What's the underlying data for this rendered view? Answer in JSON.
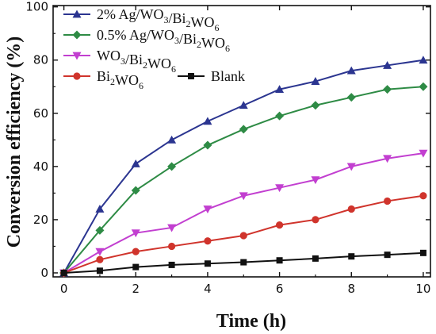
{
  "chart_data": {
    "type": "line",
    "xlabel": "Time (h)",
    "ylabel": "Conversion efficiency (%)",
    "xlim": [
      -0.3,
      10.2
    ],
    "ylim": [
      -1.5,
      100.5
    ],
    "x_ticks": [
      0,
      2,
      4,
      6,
      8,
      10
    ],
    "y_ticks": [
      0,
      20,
      40,
      60,
      80,
      100
    ],
    "legend_position": "top-left",
    "grid": false,
    "series": [
      {
        "name": "2% Ag/WO3/Bi2WO6",
        "legend_parts": [
          [
            "2% Ag/WO",
            ""
          ],
          [
            "3",
            "sub"
          ],
          [
            "/Bi",
            ""
          ],
          [
            "2",
            "sub"
          ],
          [
            "WO",
            ""
          ],
          [
            "6",
            "sub"
          ]
        ],
        "color": "#2b3590",
        "marker": "triangle-up",
        "x": [
          0,
          1,
          2,
          3,
          4,
          5,
          6,
          7,
          8,
          9,
          10
        ],
        "y": [
          0,
          24,
          41,
          50,
          57,
          63,
          69,
          72,
          76,
          78,
          80
        ]
      },
      {
        "name": "0.5% Ag/WO3/Bi2WO6",
        "legend_parts": [
          [
            "0.5% Ag/WO",
            ""
          ],
          [
            "3",
            "sub"
          ],
          [
            "/Bi",
            ""
          ],
          [
            "2",
            "sub"
          ],
          [
            "WO",
            ""
          ],
          [
            "6",
            "sub"
          ]
        ],
        "color": "#2e8b45",
        "marker": "diamond",
        "x": [
          0,
          1,
          2,
          3,
          4,
          5,
          6,
          7,
          8,
          9,
          10
        ],
        "y": [
          0,
          16,
          31,
          40,
          48,
          54,
          59,
          63,
          66,
          69,
          70
        ]
      },
      {
        "name": "WO3/Bi2WO6",
        "legend_parts": [
          [
            "WO",
            ""
          ],
          [
            "3",
            "sub"
          ],
          [
            "/Bi",
            ""
          ],
          [
            "2",
            "sub"
          ],
          [
            "WO",
            ""
          ],
          [
            "6",
            "sub"
          ]
        ],
        "color": "#c23fd0",
        "marker": "triangle-down",
        "x": [
          0,
          1,
          2,
          3,
          4,
          5,
          6,
          7,
          8,
          9,
          10
        ],
        "y": [
          0,
          8,
          15,
          17,
          24,
          29,
          32,
          35,
          40,
          43,
          45
        ]
      },
      {
        "name": "Bi2WO6",
        "legend_parts": [
          [
            "Bi",
            ""
          ],
          [
            "2",
            "sub"
          ],
          [
            "WO",
            ""
          ],
          [
            "6",
            "sub"
          ]
        ],
        "color": "#d0342c",
        "marker": "circle",
        "x": [
          0,
          1,
          2,
          3,
          4,
          5,
          6,
          7,
          8,
          9,
          10
        ],
        "y": [
          0,
          5,
          8,
          10,
          12,
          14,
          18,
          20,
          24,
          27,
          29
        ]
      },
      {
        "name": "Blank",
        "legend_parts": [
          [
            "Blank",
            ""
          ]
        ],
        "color": "#111111",
        "marker": "square",
        "x": [
          0,
          1,
          2,
          3,
          4,
          5,
          6,
          7,
          8,
          9,
          10
        ],
        "y": [
          0,
          0.8,
          2.2,
          3,
          3.5,
          4,
          4.7,
          5.4,
          6.2,
          6.8,
          7.5
        ]
      }
    ]
  }
}
